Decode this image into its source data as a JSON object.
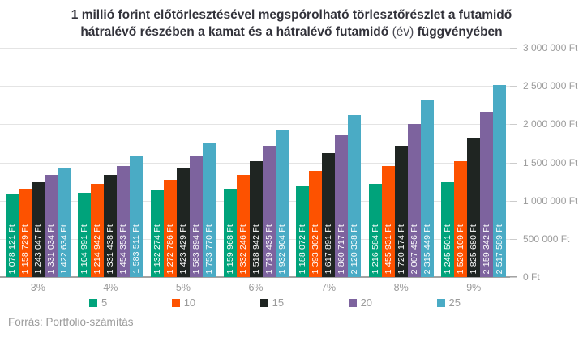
{
  "title": {
    "line1": "1 millió forint előtörlesztésével megspórolható törlesztőrészlet a futamidő",
    "line2_prefix": "hátralévő részében a kamat és a hátralévő futamidő ",
    "line2_light": "(év)",
    "line2_suffix": " függvényében"
  },
  "footer": {
    "source": "Forrás: Portfolio-számítás"
  },
  "colors": {
    "series_5": "#00a37b",
    "series_10": "#fd5200",
    "series_15": "#1f2522",
    "series_20": "#7d639e",
    "series_25": "#4aabc5",
    "grid": "#e4e4e4",
    "axis_text": "#9b9b9b",
    "title_text": "#32323a",
    "bar_label_text": "#ffffff"
  },
  "chart_data": {
    "type": "bar",
    "categories": [
      "3%",
      "4%",
      "5%",
      "6%",
      "7%",
      "8%",
      "9%"
    ],
    "series": [
      {
        "name": "5",
        "color": "#00a37b",
        "values": [
          1078121,
          1104991,
          1132274,
          1159968,
          1188072,
          1216584,
          1245501
        ]
      },
      {
        "name": "10",
        "color": "#fd5200",
        "values": [
          1158729,
          1214942,
          1272786,
          1332246,
          1393302,
          1455931,
          1520109
        ]
      },
      {
        "name": "15",
        "color": "#1f2522",
        "values": [
          1243047,
          1331438,
          1423429,
          1518942,
          1617891,
          1720174,
          1825680
        ]
      },
      {
        "name": "20",
        "color": "#7d639e",
        "values": [
          1331034,
          1454353,
          1583894,
          1719435,
          1860717,
          2007456,
          2159342
        ]
      },
      {
        "name": "25",
        "color": "#4aabc5",
        "values": [
          1422634,
          1583511,
          1753770,
          1932904,
          2120338,
          2315449,
          2517589
        ]
      }
    ],
    "bar_label_suffix": "Ft",
    "yticks": [
      "0 Ft",
      "500 000 Ft",
      "1 000 000 Ft",
      "1 500 000 Ft",
      "2 000 000 Ft",
      "2 500 000 Ft",
      "3 000 000 Ft"
    ],
    "ylim": [
      0,
      3000000
    ],
    "ytick_step": 500000,
    "grid": true,
    "legend_position": "bottom",
    "bar_value_labels": true
  }
}
